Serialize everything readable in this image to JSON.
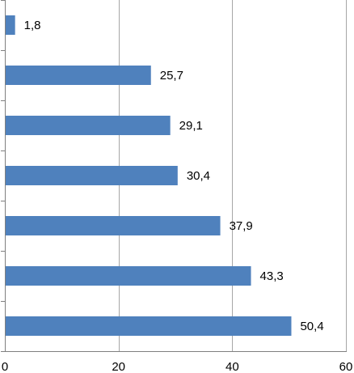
{
  "chart_data": {
    "type": "bar",
    "orientation": "horizontal",
    "categories": [
      "",
      "",
      "",
      "",
      "",
      "",
      ""
    ],
    "values": [
      1.8,
      25.7,
      29.1,
      30.4,
      37.9,
      43.3,
      50.4
    ],
    "data_labels": [
      "1,8",
      "25,7",
      "29,1",
      "30,4",
      "37,9",
      "43,3",
      "50,4"
    ],
    "xlim": [
      0,
      60
    ],
    "x_ticks": [
      0,
      20,
      40,
      60
    ],
    "x_tick_labels": [
      "0",
      "20",
      "40",
      "60"
    ],
    "title": "",
    "xlabel": "",
    "ylabel": "",
    "grid": "vertical",
    "legend": "none",
    "bar_color": "#4f81bd",
    "gridline_color": "#a6a6a6",
    "axis_color": "#808080"
  }
}
